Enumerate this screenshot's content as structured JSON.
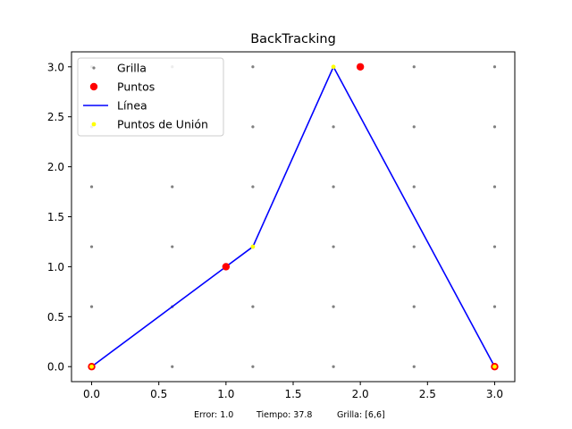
{
  "chart_data": {
    "type": "line",
    "title": "BackTracking",
    "xlabel": "",
    "ylabel": "",
    "xlim": [
      -0.15,
      3.15
    ],
    "ylim": [
      -0.15,
      3.15
    ],
    "xticks": [
      0.0,
      0.5,
      1.0,
      1.5,
      2.0,
      2.5,
      3.0
    ],
    "yticks": [
      0.0,
      0.5,
      1.0,
      1.5,
      2.0,
      2.5,
      3.0
    ],
    "xtick_labels": [
      "0.0",
      "0.5",
      "1.0",
      "1.5",
      "2.0",
      "2.5",
      "3.0"
    ],
    "ytick_labels": [
      "0.0",
      "0.5",
      "1.0",
      "1.5",
      "2.0",
      "2.5",
      "3.0"
    ],
    "grid": false,
    "legend_position": "top-left",
    "series": [
      {
        "name": "Grilla",
        "kind": "scatter",
        "color": "#808080",
        "grid_x": [
          0.0,
          0.6,
          1.2,
          1.8,
          2.4,
          3.0
        ],
        "grid_y": [
          0.0,
          0.6,
          1.2,
          1.8,
          2.4,
          3.0
        ]
      },
      {
        "name": "Puntos",
        "kind": "scatter",
        "color": "#ff0000",
        "x": [
          0,
          1,
          2,
          3
        ],
        "y": [
          0,
          1,
          3,
          0
        ]
      },
      {
        "name": "Línea",
        "kind": "line",
        "color": "#0000ff",
        "x": [
          0.0,
          1.0,
          1.2,
          1.8,
          3.0
        ],
        "y": [
          0.0,
          1.0,
          1.2,
          3.0,
          0.0
        ]
      },
      {
        "name": "Puntos de Unión",
        "kind": "scatter",
        "color": "#ffff00",
        "x": [
          0.0,
          1.2,
          1.8,
          3.0
        ],
        "y": [
          0.0,
          1.2,
          3.0,
          0.0
        ]
      }
    ],
    "footer": {
      "error": "Error: 1.0",
      "tiempo": "Tiempo: 37.8",
      "grilla": "Grilla: [6,6]"
    }
  }
}
